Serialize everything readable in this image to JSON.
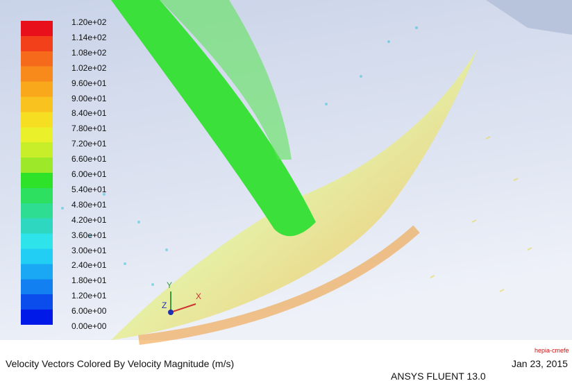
{
  "legend": {
    "labels": [
      "1.20e+02",
      "1.14e+02",
      "1.08e+02",
      "1.02e+02",
      "9.60e+01",
      "9.00e+01",
      "8.40e+01",
      "7.80e+01",
      "7.20e+01",
      "6.60e+01",
      "6.00e+01",
      "5.40e+01",
      "4.80e+01",
      "4.20e+01",
      "3.60e+01",
      "3.00e+01",
      "2.40e+01",
      "1.80e+01",
      "1.20e+01",
      "6.00e+00",
      "0.00e+00"
    ]
  },
  "triad": {
    "x": "X",
    "y": "Y",
    "z": "Z"
  },
  "caption": "Velocity Vectors Colored By Velocity Magnitude (m/s)",
  "watermark": "hepia-cmefe",
  "date": "Jan 23, 2015",
  "product": "ANSYS FLUENT 13.0"
}
